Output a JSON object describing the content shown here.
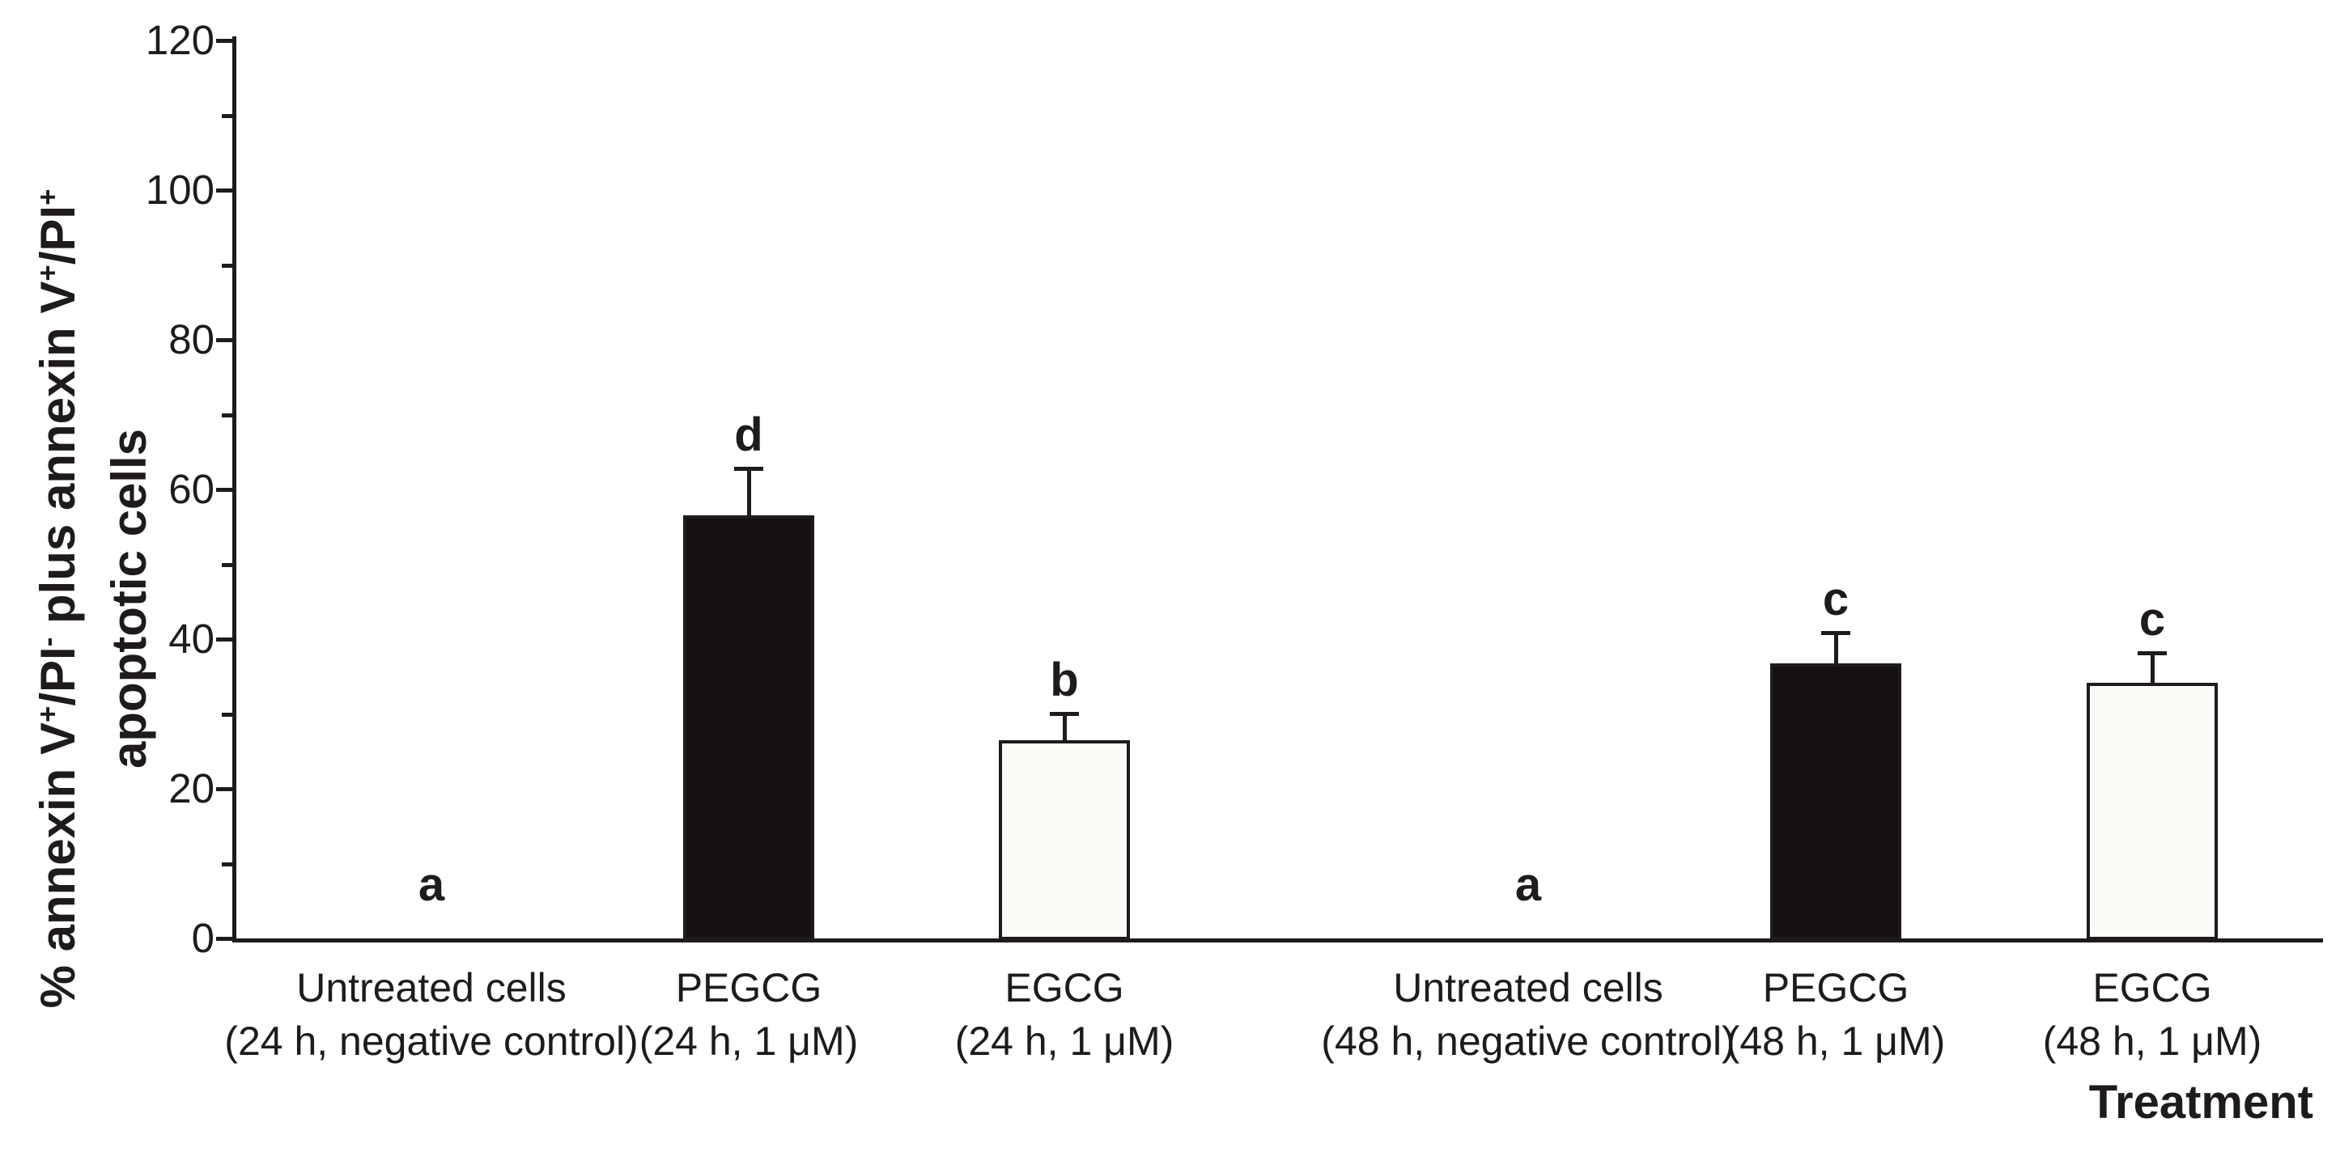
{
  "colors": {
    "ink": "#1e1b1a",
    "bar_black_fill": "#141110",
    "bar_white_fill": "#fbfaf7",
    "background": "#ffffff"
  },
  "y_axis_title": {
    "line1_segments": [
      {
        "text": "% annexin V"
      },
      {
        "text": "+",
        "sup": true
      },
      {
        "text": "/PI"
      },
      {
        "text": "-",
        "sup": true
      },
      {
        "text": " plus annexin V"
      },
      {
        "text": "+",
        "sup": true
      },
      {
        "text": "/PI"
      },
      {
        "text": "+",
        "sup": true
      }
    ],
    "line2": "apoptotic cells"
  },
  "labels": {
    "x_tick_labels": [
      {
        "slug": "untreated-24h",
        "line1": "Untreated cells",
        "line2": "(24 h, negative control)"
      },
      {
        "slug": "pegcg-24h",
        "line1": "PEGCG",
        "line2": "(24 h, 1 μM)"
      },
      {
        "slug": "egcg-24h",
        "line1": "EGCG",
        "line2": "(24 h, 1 μM)"
      },
      {
        "slug": "untreated-48h",
        "line1": "Untreated cells",
        "line2": "(48 h, negative control)"
      },
      {
        "slug": "pegcg-48h",
        "line1": "PEGCG",
        "line2": "(48 h, 1 μM)"
      },
      {
        "slug": "egcg-48h",
        "line1": "EGCG",
        "line2": "(48 h, 1 μM)"
      }
    ]
  },
  "chart_data": {
    "type": "bar",
    "title": "",
    "xlabel": "Treatment",
    "ylabel": "% annexin V+/PI- plus annexin V+/PI+ apoptotic cells",
    "categories": [
      "Untreated cells (24 h, negative control)",
      "PEGCG (24 h, 1 μM)",
      "EGCG (24 h, 1 μM)",
      "Untreated cells (48 h, negative control)",
      "PEGCG (48 h, 1 μM)",
      "EGCG (48 h, 1 μM)"
    ],
    "values": [
      0,
      56.5,
      26.5,
      0,
      36.8,
      34.2
    ],
    "errors_plus": [
      0,
      6.3,
      3.6,
      0,
      4.1,
      4.0
    ],
    "significance_letters": [
      "a",
      "d",
      "b",
      "a",
      "c",
      "c"
    ],
    "bar_styles": [
      "none",
      "solid-black",
      "open-white",
      "none",
      "solid-black",
      "open-white"
    ],
    "ylim": [
      0,
      120
    ],
    "yticks": [
      0,
      20,
      40,
      60,
      80,
      100,
      120
    ],
    "yticks_minor": [
      10,
      30,
      50,
      70,
      90,
      110
    ],
    "grid": false,
    "legend": false
  }
}
